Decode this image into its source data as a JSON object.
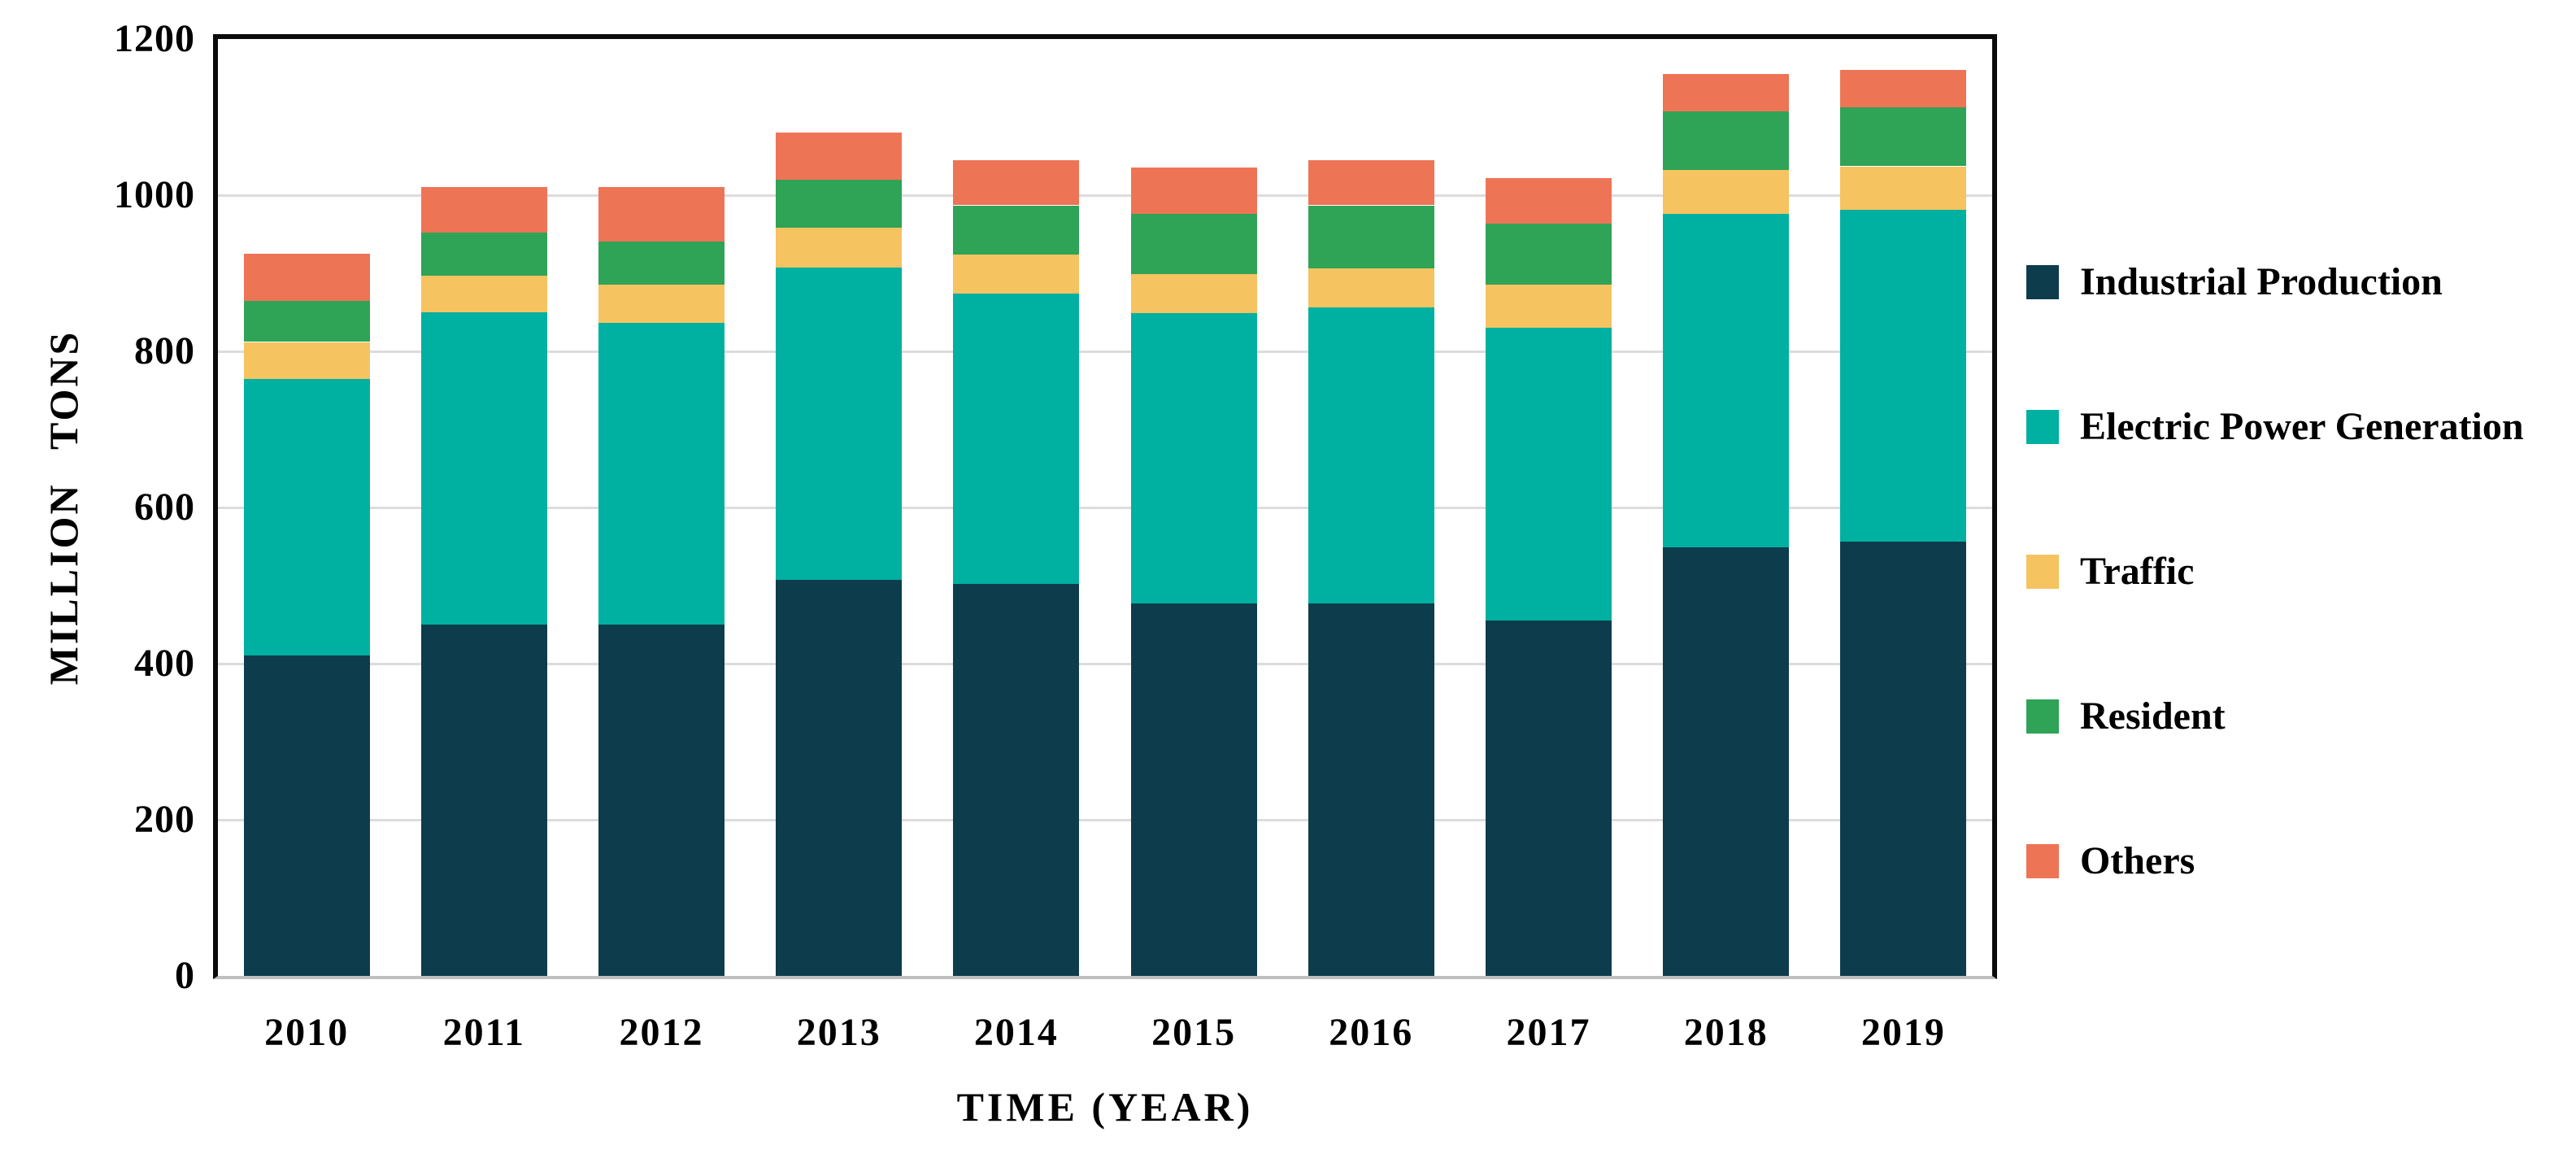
{
  "chart_data": {
    "type": "bar",
    "stacked": true,
    "title": "",
    "xlabel": "TIME (YEAR)",
    "ylabel": "MILLION TONS",
    "ylim": [
      0,
      1200
    ],
    "yticks": [
      0,
      200,
      400,
      600,
      800,
      1000,
      1200
    ],
    "grid": true,
    "legend_position": "right",
    "categories": [
      "2010",
      "2011",
      "2012",
      "2013",
      "2014",
      "2015",
      "2016",
      "2017",
      "2018",
      "2019"
    ],
    "series": [
      {
        "name": "Industrial Production",
        "color": "#0d3d4c",
        "values": [
          410,
          450,
          450,
          507,
          502,
          477,
          477,
          455,
          549,
          556
        ]
      },
      {
        "name": "Electric Power Generation",
        "color": "#00b0a0",
        "values": [
          355,
          400,
          386,
          400,
          372,
          372,
          379,
          375,
          427,
          425
        ]
      },
      {
        "name": "Traffic",
        "color": "#f5c360",
        "values": [
          47,
          47,
          49,
          51,
          50,
          50,
          50,
          55,
          56,
          56
        ]
      },
      {
        "name": "Resident",
        "color": "#2fa356",
        "values": [
          53,
          55,
          56,
          62,
          63,
          77,
          81,
          79,
          75,
          76
        ]
      },
      {
        "name": "Others",
        "color": "#ee7456",
        "values": [
          60,
          58,
          69,
          60,
          58,
          59,
          58,
          58,
          48,
          47
        ]
      }
    ],
    "totals": [
      925,
      1010,
      1010,
      1080,
      1045,
      1035,
      1045,
      1022,
      1155,
      1160
    ]
  }
}
